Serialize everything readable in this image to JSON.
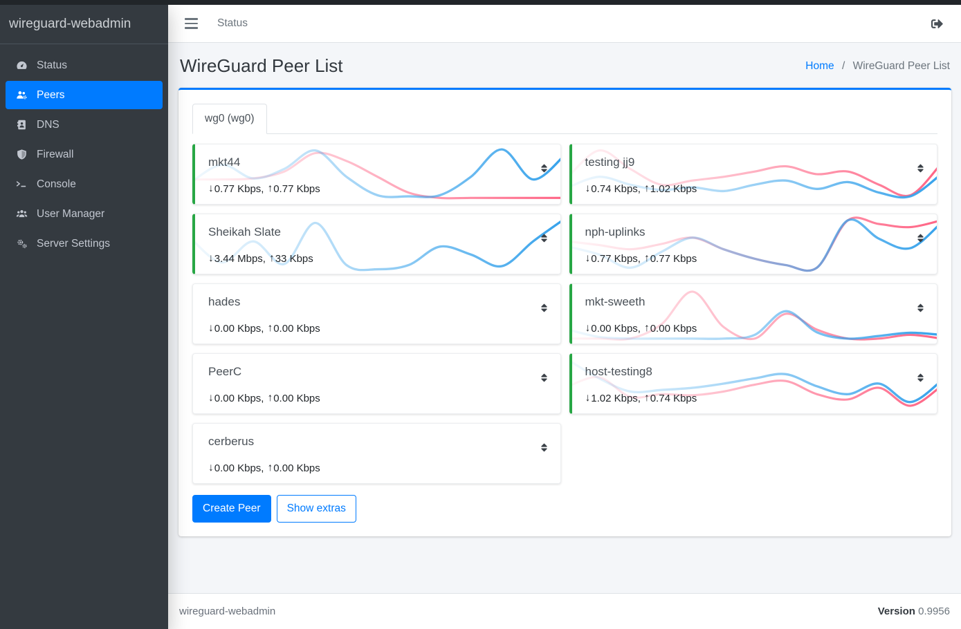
{
  "app": {
    "brand": "wireguard-webadmin"
  },
  "topbar": {
    "nav_link": "Status",
    "menu_icon": "bars-icon",
    "logout_icon": "sign-out-icon"
  },
  "sidebar": {
    "brand": "wireguard-webadmin",
    "items": [
      {
        "label": "Status",
        "icon": "gauge-icon",
        "active": false
      },
      {
        "label": "Peers",
        "icon": "users-gear-icon",
        "active": true
      },
      {
        "label": "DNS",
        "icon": "address-book-icon",
        "active": false
      },
      {
        "label": "Firewall",
        "icon": "shield-icon",
        "active": false
      },
      {
        "label": "Console",
        "icon": "terminal-icon",
        "active": false
      },
      {
        "label": "User Manager",
        "icon": "users-icon",
        "active": false
      },
      {
        "label": "Server Settings",
        "icon": "gears-icon",
        "active": false
      }
    ]
  },
  "page": {
    "title": "WireGuard Peer List",
    "breadcrumb": {
      "home": "Home",
      "separator": "/",
      "current": "WireGuard Peer List"
    }
  },
  "tabs": [
    {
      "label": "wg0 (wg0)",
      "active": true
    }
  ],
  "icons": {
    "download_arrow": "↓",
    "upload_arrow": "↑",
    "peer_sort": "sort-icon"
  },
  "buttons": {
    "create_peer": "Create Peer",
    "show_extras": "Show extras"
  },
  "footer": {
    "brand": "wireguard-webadmin",
    "version_label": "Version",
    "version_value": "0.9956"
  },
  "colors": {
    "accent_blue": "#007bff",
    "active_green": "#28a745",
    "chart_blue": "#36a2eb",
    "chart_pink": "#ff6384",
    "sidebar_bg": "#343a40"
  },
  "peers": [
    {
      "name": "mkt44",
      "down": "0.77 Kbps,",
      "up": "0.77 Kbps",
      "accent": true,
      "spark": {
        "blue": [
          0.35,
          0.68,
          0.42,
          0.6,
          0.95,
          0.45,
          0.1,
          0.08,
          0.1,
          0.45,
          0.97,
          0.4,
          0.85
        ],
        "pink": [
          0.4,
          0.4,
          0.42,
          0.55,
          0.9,
          0.75,
          0.45,
          0.15,
          0.05,
          0.05,
          0.05,
          0.05,
          0.05
        ]
      }
    },
    {
      "name": "testing jj9",
      "down": "0.74 Kbps,",
      "up": "1.02 Kbps",
      "accent": true,
      "spark": {
        "blue": [
          0.25,
          0.45,
          0.3,
          0.2,
          0.25,
          0.18,
          0.3,
          0.38,
          0.22,
          0.35,
          0.15,
          0.08,
          0.5
        ],
        "pink": [
          0.45,
          0.95,
          0.6,
          0.3,
          0.38,
          0.45,
          0.55,
          0.65,
          0.5,
          0.55,
          0.3,
          0.1,
          0.7
        ]
      }
    },
    {
      "name": "Sheikah Slate",
      "down": "3.44 Mbps,",
      "up": "33 Kbps",
      "accent": true,
      "spark": {
        "blue": [
          0.6,
          0.15,
          0.55,
          0.12,
          0.9,
          0.1,
          0.02,
          0.1,
          0.45,
          0.3,
          0.08,
          0.55,
          0.97
        ],
        "pink": [
          0.03,
          0.03,
          0.03,
          0.03,
          0.03,
          0.03,
          0.03,
          0.03,
          0.03,
          0.03,
          0.03,
          0.03,
          0.03
        ]
      }
    },
    {
      "name": "nph-uplinks",
      "down": "0.77 Kbps,",
      "up": "0.77 Kbps",
      "accent": true,
      "spark": {
        "blue": [
          0.45,
          0.3,
          0.05,
          0.35,
          0.62,
          0.4,
          0.22,
          0.1,
          0.05,
          0.95,
          0.6,
          0.42,
          0.9
        ],
        "pink": [
          0.55,
          0.48,
          0.4,
          0.5,
          0.62,
          0.4,
          0.22,
          0.1,
          0.05,
          0.95,
          0.88,
          0.82,
          0.95
        ]
      }
    },
    {
      "name": "hades",
      "down": "0.00 Kbps,",
      "up": "0.00 Kbps",
      "accent": false,
      "spark": {
        "blue": [
          0.02,
          0.02,
          0.02,
          0.02,
          0.02,
          0.02,
          0.02,
          0.02,
          0.02,
          0.02,
          0.02,
          0.02,
          0.02
        ],
        "pink": [
          0.02,
          0.02,
          0.02,
          0.02,
          0.02,
          0.02,
          0.02,
          0.02,
          0.02,
          0.02,
          0.02,
          0.02,
          0.02
        ]
      }
    },
    {
      "name": "mkt-sweeth",
      "down": "0.00 Kbps,",
      "up": "0.00 Kbps",
      "accent": true,
      "spark": {
        "blue": [
          0.2,
          0.06,
          0.03,
          0.03,
          0.03,
          0.03,
          0.1,
          0.55,
          0.15,
          0.03,
          0.08,
          0.14,
          0.1
        ],
        "pink": [
          0.03,
          0.03,
          0.03,
          0.3,
          0.92,
          0.25,
          0.03,
          0.5,
          0.2,
          0.03,
          0.03,
          0.1,
          0.03
        ]
      }
    },
    {
      "name": "PeerC",
      "down": "0.00 Kbps,",
      "up": "0.00 Kbps",
      "accent": false,
      "spark": {
        "blue": [
          0.02,
          0.02,
          0.02,
          0.02,
          0.02,
          0.02,
          0.02,
          0.02,
          0.02,
          0.02,
          0.02,
          0.02,
          0.02
        ],
        "pink": [
          0.02,
          0.02,
          0.02,
          0.02,
          0.02,
          0.02,
          0.02,
          0.02,
          0.02,
          0.02,
          0.02,
          0.02,
          0.02
        ]
      }
    },
    {
      "name": "host-testing8",
      "down": "1.02 Kbps,",
      "up": "0.74 Kbps",
      "accent": true,
      "spark": {
        "blue": [
          0.95,
          0.6,
          0.35,
          0.38,
          0.42,
          0.5,
          0.6,
          0.68,
          0.45,
          0.3,
          0.5,
          0.15,
          0.55
        ],
        "pink": [
          0.45,
          0.62,
          0.25,
          0.3,
          0.28,
          0.35,
          0.48,
          0.55,
          0.3,
          0.2,
          0.42,
          0.08,
          0.45
        ]
      }
    },
    {
      "name": "cerberus",
      "down": "0.00 Kbps,",
      "up": "0.00 Kbps",
      "accent": false,
      "spark": {
        "blue": [
          0.02,
          0.02,
          0.02,
          0.02,
          0.02,
          0.02,
          0.02,
          0.02,
          0.02,
          0.02,
          0.02,
          0.02,
          0.02
        ],
        "pink": [
          0.02,
          0.02,
          0.02,
          0.02,
          0.02,
          0.02,
          0.02,
          0.02,
          0.02,
          0.02,
          0.02,
          0.02,
          0.02
        ]
      }
    }
  ]
}
